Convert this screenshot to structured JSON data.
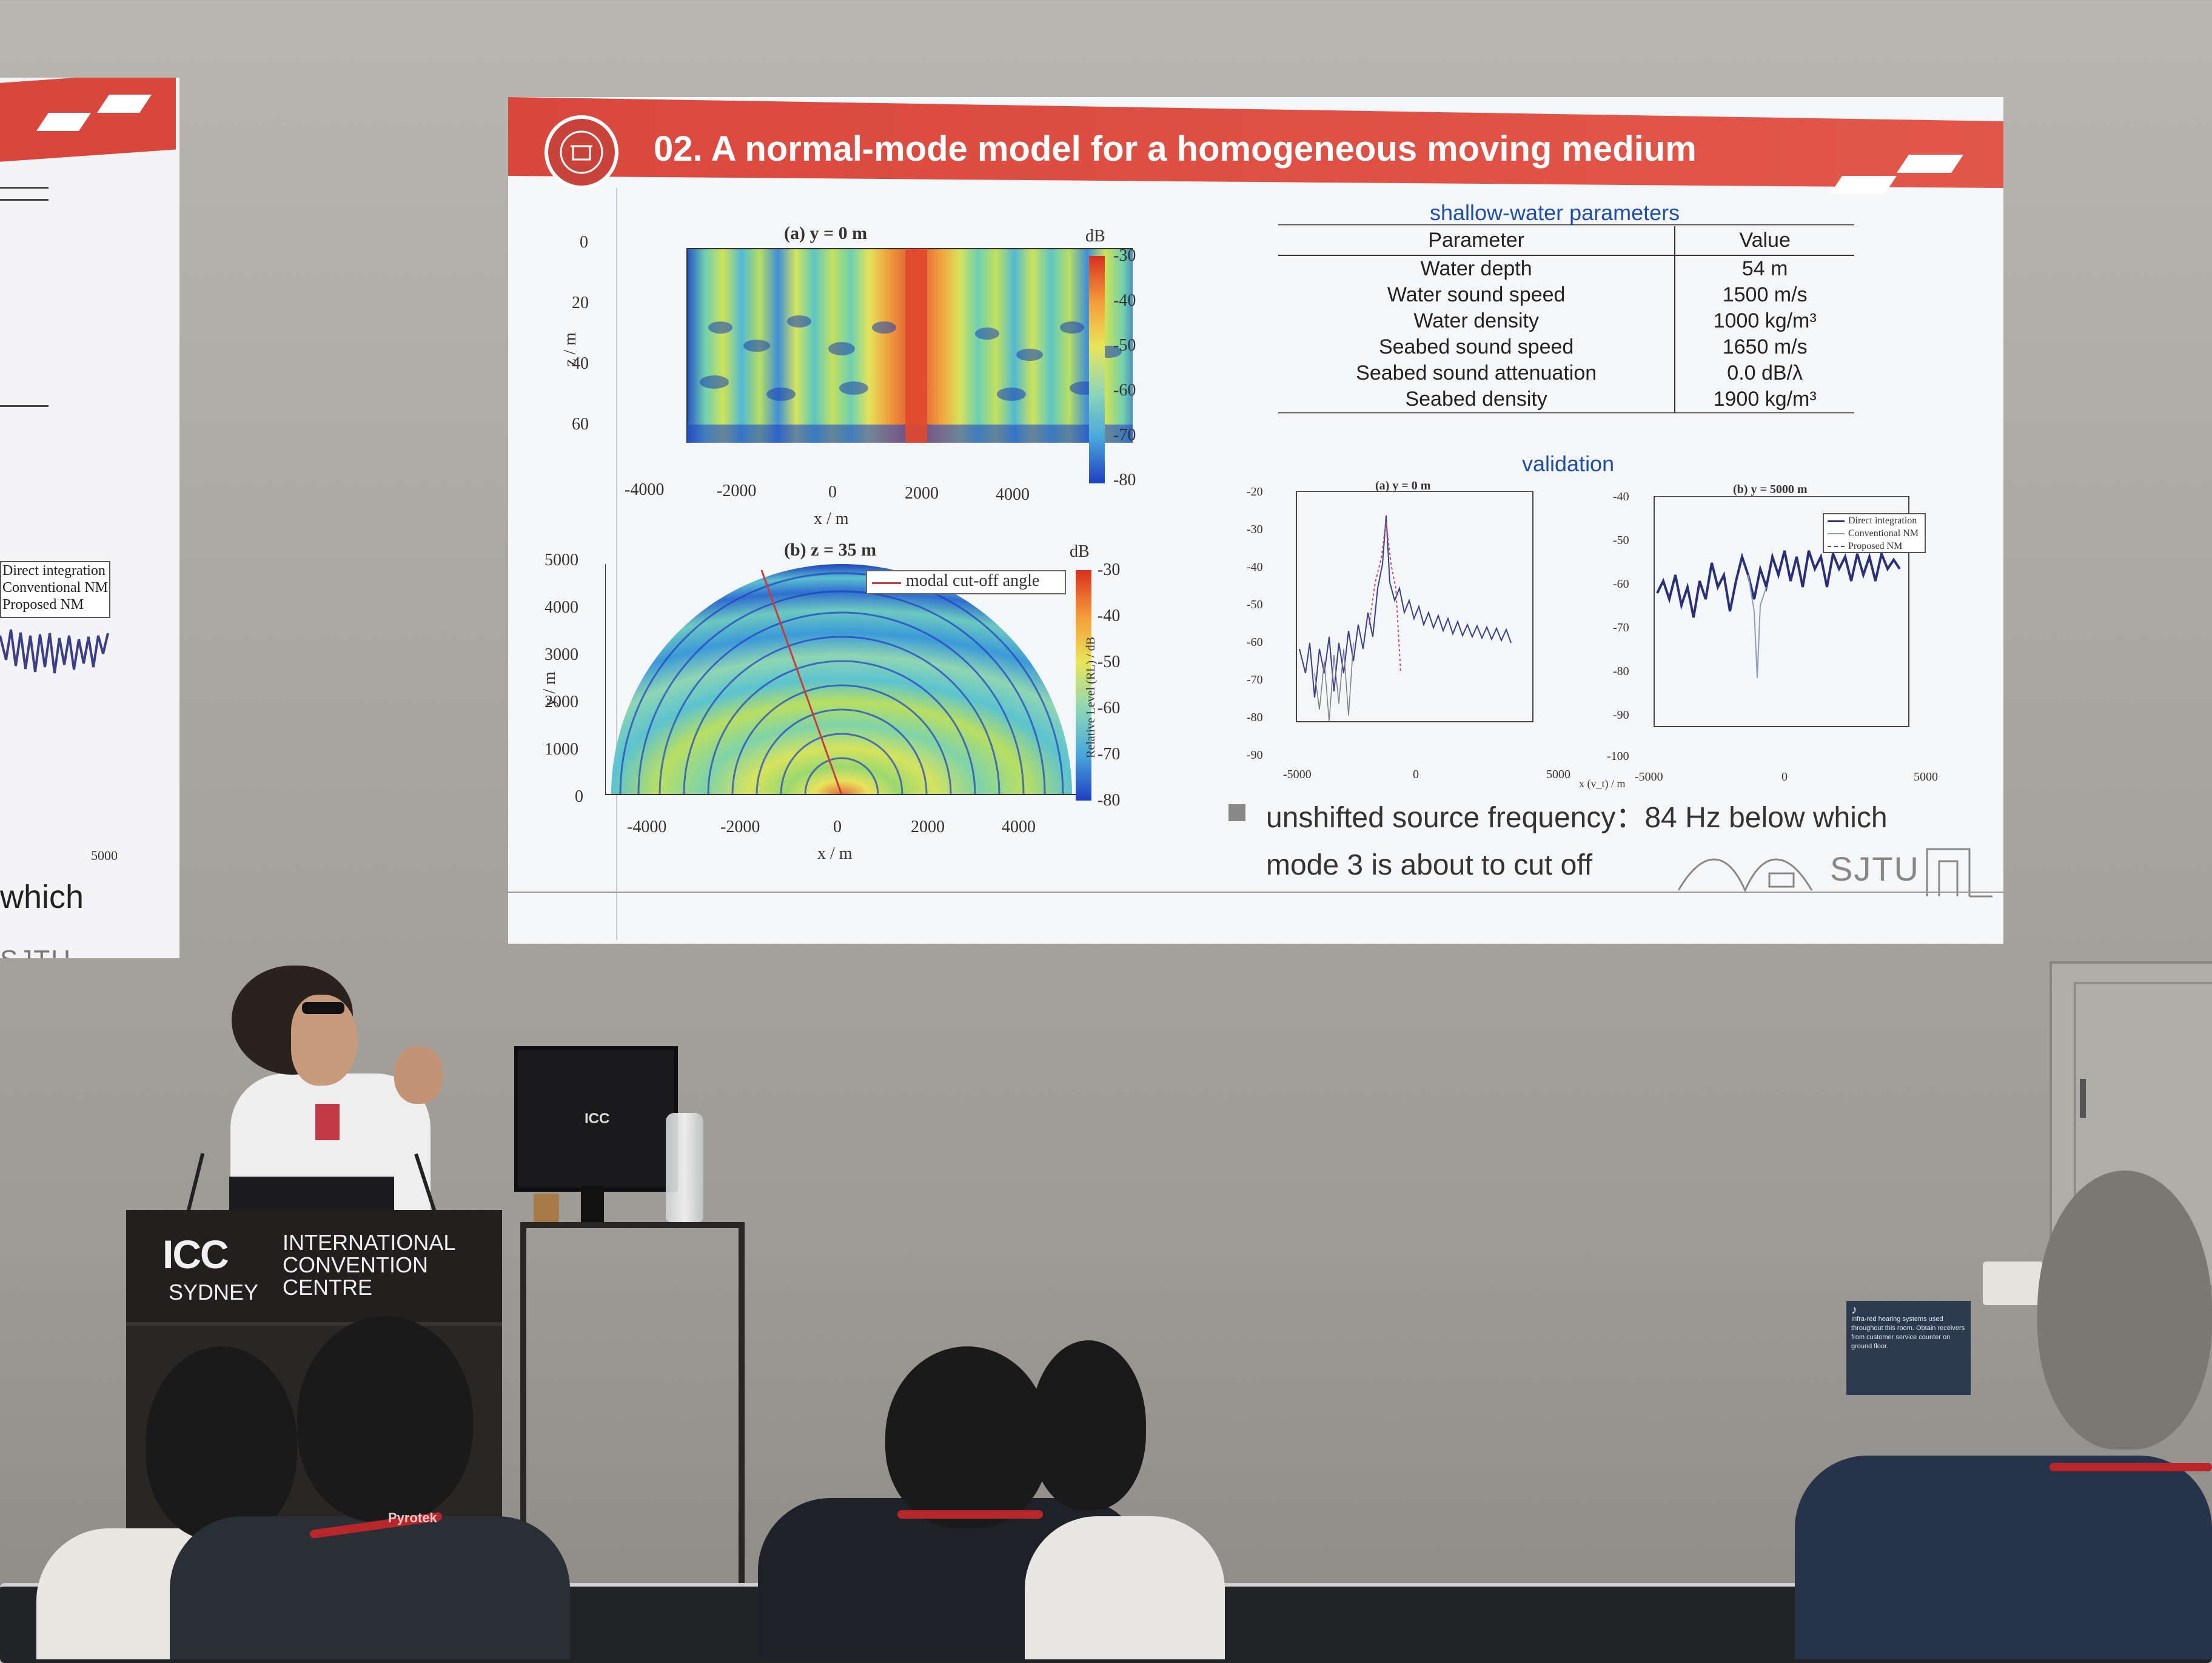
{
  "left_screen": {
    "legend": [
      "Direct integration",
      "Conventional NM",
      "Proposed NM"
    ],
    "tick_label": "5000",
    "word": "which",
    "logo_text": "SJTU"
  },
  "slide": {
    "title": "02. A normal-mode model for a homogeneous moving medium",
    "logo_text": "SJTU",
    "fig_a": {
      "title": "(a) y = 0 m",
      "xlabel": "x / m",
      "ylabel": "z / m",
      "xticks": [
        "-4000",
        "-2000",
        "0",
        "2000",
        "4000"
      ],
      "yticks": [
        "0",
        "20",
        "40",
        "60"
      ],
      "colorbar_unit": "dB",
      "colorbar_ticks": [
        "-30",
        "-40",
        "-50",
        "-60",
        "-70",
        "-80"
      ]
    },
    "fig_b": {
      "title": "(b) z = 35 m",
      "xlabel": "x / m",
      "ylabel": "y / m",
      "xticks": [
        "-4000",
        "-2000",
        "0",
        "2000",
        "4000"
      ],
      "yticks": [
        "5000",
        "4000",
        "3000",
        "2000",
        "1000",
        "0"
      ],
      "legend": "modal cut-off angle",
      "colorbar_unit": "dB",
      "colorbar_ticks": [
        "-30",
        "-40",
        "-50",
        "-60",
        "-70",
        "-80"
      ]
    },
    "table": {
      "caption": "shallow-water parameters",
      "headers": [
        "Parameter",
        "Value"
      ],
      "rows": [
        [
          "Water depth",
          "54 m"
        ],
        [
          "Water sound speed",
          "1500 m/s"
        ],
        [
          "Water density",
          "1000 kg/m³"
        ],
        [
          "Seabed sound speed",
          "1650 m/s"
        ],
        [
          "Seabed sound attenuation",
          "0.0 dB/λ"
        ],
        [
          "Seabed density",
          "1900 kg/m³"
        ]
      ]
    },
    "validation": {
      "title": "validation",
      "panel_a_title": "(a) y = 0 m",
      "panel_b_title": "(b) y = 5000 m",
      "ylabel": "Relative Level (RL) / dB",
      "xlabel": "x (v_t) / m",
      "yticks_a": [
        "-20",
        "-30",
        "-40",
        "-50",
        "-60",
        "-70",
        "-80",
        "-90"
      ],
      "yticks_b": [
        "-40",
        "-50",
        "-60",
        "-70",
        "-80",
        "-90",
        "-100"
      ],
      "xticks": [
        "-5000",
        "0",
        "5000"
      ],
      "legend": [
        "Direct integration",
        "Conventional NM",
        "Proposed NM"
      ]
    },
    "bullet": "unshifted source frequency：84 Hz below which mode 3 is about to cut off"
  },
  "podium": {
    "logo": "ICC",
    "city": "SYDNEY",
    "name_lines": [
      "INTERNATIONAL",
      "CONVENTION",
      "CENTRE"
    ]
  },
  "monitor_logo": "ICC",
  "lanyard_brand": "Pyrotek",
  "sign_text": "Infra-red hearing systems used throughout this room. Obtain receivers from customer service counter on ground floor."
}
